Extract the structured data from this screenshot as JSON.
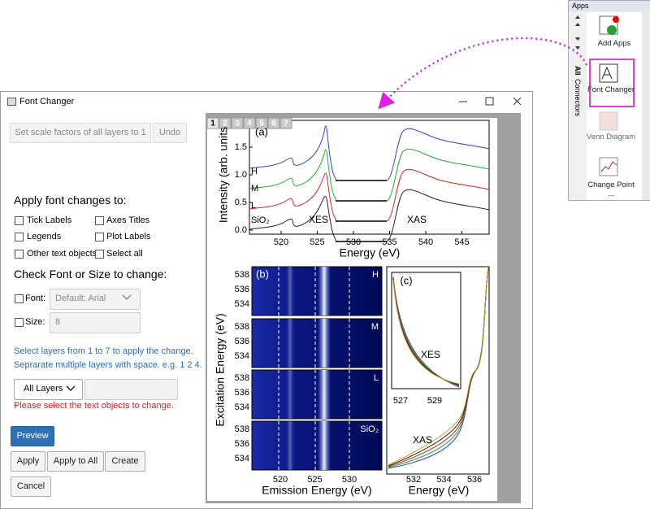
{
  "apps_panel": {
    "title": "Apps",
    "tabs": [
      "All",
      "Connectors"
    ],
    "items": [
      "Add Apps",
      "Font Changer",
      "Venn Diagram",
      "Change Point ..."
    ]
  },
  "dialog": {
    "title": "Font Changer",
    "buttons": {
      "scale": "Set scale factors of all layers to 1",
      "undo": "Undo",
      "preview": "Preview",
      "apply": "Apply",
      "apply_all": "Apply to All",
      "create": "Create",
      "cancel": "Cancel"
    },
    "apply_heading": "Apply font changes to:",
    "targets": [
      "Tick Labels",
      "Axes Titles",
      "Legends",
      "Plot Labels",
      "Other text objects",
      "Select all"
    ],
    "check_heading": "Check Font or Size to change:",
    "font_label": "Font:",
    "font_value": "Default: Arial",
    "size_label": "Size:",
    "size_value": "8",
    "hint": [
      "Select layers from 1 to 7 to apply the change.",
      "Seprarate multiple layers with space. e.g. 1 2 4."
    ],
    "layers_select": "All Layers",
    "warning": "Please select the text objects to change."
  },
  "graph": {
    "layer_tabs": [
      "1",
      "2",
      "3",
      "4",
      "5",
      "6",
      "7"
    ],
    "panel_a": {
      "label": "(a)",
      "y_title": "Intensity (arb. units",
      "x_title": "Energy (eV)",
      "yticks": [
        "0.0",
        "0.5",
        "1.0",
        "1.5"
      ],
      "xticks": [
        520,
        525,
        530,
        535,
        540,
        545
      ],
      "curve_labels": [
        "H",
        "M",
        "L",
        "SiO₂"
      ],
      "xes": "XES",
      "xas": "XAS"
    },
    "panel_b": {
      "label": "(b)",
      "y_title": "Excitation Energy (eV)",
      "x_title": "Emission Energy (eV)",
      "yticks": [
        538,
        536,
        534
      ],
      "xticks": [
        520,
        525,
        530
      ],
      "panel_labels": [
        "H",
        "M",
        "L",
        "SiO₂"
      ]
    },
    "panel_c": {
      "label": "(c)",
      "inset_xticks": [
        527,
        529
      ],
      "inset_label": "XES",
      "xticks": [
        532,
        534,
        536
      ],
      "label_xas": "XAS",
      "x_title": "Energy (eV)"
    }
  }
}
